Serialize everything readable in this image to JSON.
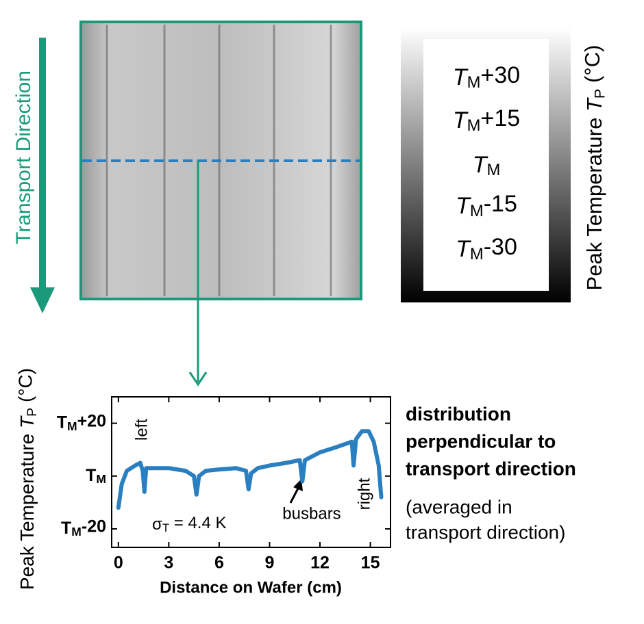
{
  "thermal_image": {
    "transport_label": "Transport Direction"
  },
  "colorbar": {
    "label": "Peak Temperature TP (°C)",
    "labels": [
      "TM+30",
      "TM+15",
      "TM",
      "TM-15",
      "TM-30"
    ]
  },
  "description": {
    "title_lines": [
      "distribution",
      "perpendicular to",
      "transport direction"
    ],
    "note_lines": [
      "(averaged in",
      "transport direction)"
    ]
  },
  "chart_data": {
    "type": "line",
    "xlabel": "Distance on Wafer (cm)",
    "ylabel": "Peak Temperature TP (°C)",
    "x": [
      0,
      0.2,
      0.5,
      1.0,
      1.3,
      1.45,
      1.55,
      1.65,
      2.0,
      3.0,
      4.0,
      4.5,
      4.65,
      4.8,
      5.2,
      6.0,
      7.0,
      7.6,
      7.75,
      7.9,
      8.3,
      9.0,
      10.0,
      10.8,
      10.95,
      11.1,
      12.0,
      13.0,
      13.9,
      14.0,
      14.15,
      14.5,
      14.9,
      15.2,
      15.5,
      15.65
    ],
    "values": [
      -12,
      -3,
      2,
      4,
      5,
      2,
      -6,
      3,
      3,
      3,
      2,
      0,
      -7,
      0,
      2,
      2.5,
      3,
      2,
      -5,
      1,
      3,
      4,
      5,
      6,
      -2,
      6,
      9,
      11,
      13,
      4,
      14,
      17,
      17,
      13,
      4,
      -8
    ],
    "color": "#2a7fc0",
    "xlim": [
      -0.4,
      16.2
    ],
    "xticks": [
      0,
      3,
      6,
      9,
      12,
      15
    ],
    "ylim": [
      -27,
      30
    ],
    "yticks": [
      {
        "value": -20,
        "label": "TM-20"
      },
      {
        "value": 0,
        "label": "TM"
      },
      {
        "value": 20,
        "label": "TM+20"
      }
    ],
    "annotations": [
      "left",
      "right",
      "busbars",
      "σT = 4.4 K"
    ]
  }
}
